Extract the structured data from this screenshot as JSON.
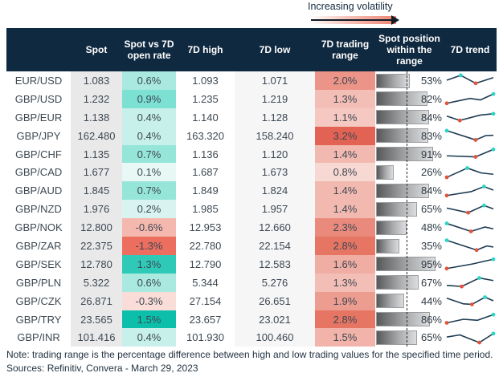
{
  "legend": {
    "label": "Increasing volatility"
  },
  "footer": {
    "note": "Note: trading range is the percentage difference between high and low trading values for the specified time period.",
    "sources": "Sources: Refinitiv, Convera - March 29, 2023"
  },
  "colors": {
    "header_bg": "#0f2940",
    "header_text": "#ffffff",
    "body_text": "#3d4852",
    "spot_col_bg": "#e9e9ea",
    "low_col_bg": "#f6f6f7",
    "spark_line": "#1d3b52",
    "spark_min_dot": "#e2543e",
    "spark_max_dot": "#2cd5c4",
    "bar_border": "#9b9da0",
    "accent_teal_strong": "#0bbfab",
    "accent_red_strong": "#e26253"
  },
  "chart_data": {
    "type": "table",
    "title": "FX 7-day trading summary",
    "legend_note": "Increasing volatility (red shading of 7D trading range)",
    "columns": [
      "",
      "Spot",
      "Spot vs 7D open rate",
      "7D high",
      "7D low",
      "7D trading range",
      "Spot position within the range",
      "7D trend"
    ],
    "position_scale": {
      "min_pct": 0,
      "max_pct": 100,
      "midline_pct": 50
    },
    "rows": [
      {
        "pair": "EUR/USD",
        "spot": "1.083",
        "vs_open": "0.6%",
        "vs_open_color": "#a9e9df",
        "high": "1.093",
        "low": "1.071",
        "range": "2.0%",
        "range_color": "#ec9488",
        "position_pct": 53,
        "position_label": "53%",
        "trend": {
          "points": [
            [
              0,
              0.5
            ],
            [
              0.3,
              0.88
            ],
            [
              0.62,
              0.26
            ],
            [
              1,
              0.7
            ]
          ],
          "max_idx": 1,
          "min_idx": 2
        }
      },
      {
        "pair": "GBP/USD",
        "spot": "1.232",
        "vs_open": "0.9%",
        "vs_open_color": "#7ce0d3",
        "high": "1.235",
        "low": "1.219",
        "range": "1.3%",
        "range_color": "#f3beb6",
        "position_pct": 82,
        "position_label": "82%",
        "trend": {
          "points": [
            [
              0,
              0.14
            ],
            [
              0.5,
              0.52
            ],
            [
              0.72,
              0.4
            ],
            [
              1,
              0.86
            ]
          ],
          "max_idx": 3,
          "min_idx": 0
        }
      },
      {
        "pair": "GBP/EUR",
        "spot": "1.138",
        "vs_open": "0.4%",
        "vs_open_color": "#c7f0ea",
        "high": "1.140",
        "low": "1.128",
        "range": "1.1%",
        "range_color": "#f5c8c1",
        "position_pct": 84,
        "position_label": "84%",
        "trend": {
          "points": [
            [
              0,
              0.58
            ],
            [
              0.28,
              0.24
            ],
            [
              0.72,
              0.66
            ],
            [
              1,
              0.76
            ]
          ],
          "max_idx": 3,
          "min_idx": 1
        }
      },
      {
        "pair": "GBP/JPY",
        "spot": "162.480",
        "vs_open": "0.4%",
        "vs_open_color": "#c7f0ea",
        "high": "163.320",
        "low": "158.240",
        "range": "3.2%",
        "range_color": "#e26253",
        "position_pct": 83,
        "position_label": "83%",
        "trend": {
          "points": [
            [
              0,
              0.88
            ],
            [
              0.62,
              0.16
            ],
            [
              0.84,
              0.5
            ],
            [
              1,
              0.52
            ]
          ],
          "max_idx": 0,
          "min_idx": 1
        }
      },
      {
        "pair": "GBP/CHF",
        "spot": "1.135",
        "vs_open": "0.7%",
        "vs_open_color": "#96e5d9",
        "high": "1.136",
        "low": "1.120",
        "range": "1.4%",
        "range_color": "#f2b9b0",
        "position_pct": 91,
        "position_label": "91%",
        "trend": {
          "points": [
            [
              0,
              0.36
            ],
            [
              0.62,
              0.28
            ],
            [
              1,
              0.86
            ]
          ],
          "max_idx": 2,
          "min_idx": 1
        }
      },
      {
        "pair": "GBP/CAD",
        "spot": "1.677",
        "vs_open": "0.1%",
        "vs_open_color": "#e7f8f5",
        "high": "1.687",
        "low": "1.673",
        "range": "0.8%",
        "range_color": "#f8d8d3",
        "position_pct": 26,
        "position_label": "26%",
        "trend": {
          "points": [
            [
              0,
              0.12
            ],
            [
              0.44,
              0.84
            ],
            [
              0.74,
              0.46
            ],
            [
              1,
              0.36
            ]
          ],
          "max_idx": 1,
          "min_idx": 0
        }
      },
      {
        "pair": "GBP/AUD",
        "spot": "1.845",
        "vs_open": "0.7%",
        "vs_open_color": "#96e5d9",
        "high": "1.849",
        "low": "1.824",
        "range": "1.4%",
        "range_color": "#f2b9b0",
        "position_pct": 84,
        "position_label": "84%",
        "trend": {
          "points": [
            [
              0,
              0.14
            ],
            [
              0.52,
              0.44
            ],
            [
              0.8,
              0.84
            ],
            [
              1,
              0.56
            ]
          ],
          "max_idx": 2,
          "min_idx": 0
        }
      },
      {
        "pair": "GBP/NZD",
        "spot": "1.976",
        "vs_open": "0.2%",
        "vs_open_color": "#d9f4f0",
        "high": "1.985",
        "low": "1.957",
        "range": "1.4%",
        "range_color": "#f2b9b0",
        "position_pct": 65,
        "position_label": "65%",
        "trend": {
          "points": [
            [
              0,
              0.6
            ],
            [
              0.46,
              0.24
            ],
            [
              0.8,
              0.8
            ],
            [
              1,
              0.54
            ]
          ],
          "max_idx": 2,
          "min_idx": 1
        }
      },
      {
        "pair": "GBP/NOK",
        "spot": "12.800",
        "vs_open": "-0.6%",
        "vs_open_color": "#f5b8af",
        "high": "12.953",
        "low": "12.660",
        "range": "2.3%",
        "range_color": "#e98a7d",
        "position_pct": 48,
        "position_label": "48%",
        "trend": {
          "points": [
            [
              0,
              0.84
            ],
            [
              0.52,
              0.22
            ],
            [
              0.82,
              0.56
            ],
            [
              1,
              0.42
            ]
          ],
          "max_idx": 0,
          "min_idx": 1
        }
      },
      {
        "pair": "GBP/ZAR",
        "spot": "22.375",
        "vs_open": "-1.3%",
        "vs_open_color": "#eb6e5f",
        "high": "22.780",
        "low": "22.154",
        "range": "2.8%",
        "range_color": "#e67564",
        "position_pct": 35,
        "position_label": "35%",
        "trend": {
          "points": [
            [
              0,
              0.9
            ],
            [
              0.64,
              0.14
            ],
            [
              0.86,
              0.46
            ],
            [
              1,
              0.38
            ]
          ],
          "max_idx": 0,
          "min_idx": 1
        }
      },
      {
        "pair": "GBP/SEK",
        "spot": "12.780",
        "vs_open": "1.3%",
        "vs_open_color": "#2fcab7",
        "high": "12.790",
        "low": "12.583",
        "range": "1.6%",
        "range_color": "#f0ada3",
        "position_pct": 95,
        "position_label": "95%",
        "trend": {
          "points": [
            [
              0,
              0.14
            ],
            [
              0.56,
              0.5
            ],
            [
              0.82,
              0.72
            ],
            [
              1,
              0.86
            ]
          ],
          "max_idx": 3,
          "min_idx": 0
        }
      },
      {
        "pair": "GBP/PLN",
        "spot": "5.322",
        "vs_open": "0.6%",
        "vs_open_color": "#a9e9df",
        "high": "5.344",
        "low": "5.276",
        "range": "1.3%",
        "range_color": "#f3beb6",
        "position_pct": 67,
        "position_label": "67%",
        "trend": {
          "points": [
            [
              0,
              0.26
            ],
            [
              0.32,
              0.18
            ],
            [
              0.7,
              0.84
            ],
            [
              1,
              0.64
            ]
          ],
          "max_idx": 2,
          "min_idx": 1
        }
      },
      {
        "pair": "GBP/CZK",
        "spot": "26.871",
        "vs_open": "-0.3%",
        "vs_open_color": "#fadcd8",
        "high": "27.154",
        "low": "26.651",
        "range": "1.9%",
        "range_color": "#ed9d90",
        "position_pct": 44,
        "position_label": "44%",
        "trend": {
          "points": [
            [
              0,
              0.7
            ],
            [
              0.36,
              0.26
            ],
            [
              0.54,
              0.22
            ],
            [
              0.82,
              0.78
            ],
            [
              1,
              0.5
            ]
          ],
          "max_idx": 3,
          "min_idx": 2
        }
      },
      {
        "pair": "GBP/TRY",
        "spot": "23.565",
        "vs_open": "1.5%",
        "vs_open_color": "#0bbfab",
        "high": "23.657",
        "low": "23.021",
        "range": "2.8%",
        "range_color": "#e67564",
        "position_pct": 86,
        "position_label": "86%",
        "trend": {
          "points": [
            [
              0,
              0.22
            ],
            [
              0.36,
              0.5
            ],
            [
              0.66,
              0.42
            ],
            [
              1,
              0.86
            ]
          ],
          "max_idx": 3,
          "min_idx": 0
        }
      },
      {
        "pair": "GBP/INR",
        "spot": "101.416",
        "vs_open": "0.4%",
        "vs_open_color": "#c7f0ea",
        "high": "101.930",
        "low": "100.460",
        "range": "1.5%",
        "range_color": "#f1b3aa",
        "position_pct": 65,
        "position_label": "65%",
        "trend": {
          "points": [
            [
              0,
              0.55
            ],
            [
              0.28,
              0.72
            ],
            [
              0.7,
              0.12
            ],
            [
              1,
              0.82
            ]
          ],
          "max_idx": 3,
          "min_idx": 2
        }
      }
    ]
  }
}
